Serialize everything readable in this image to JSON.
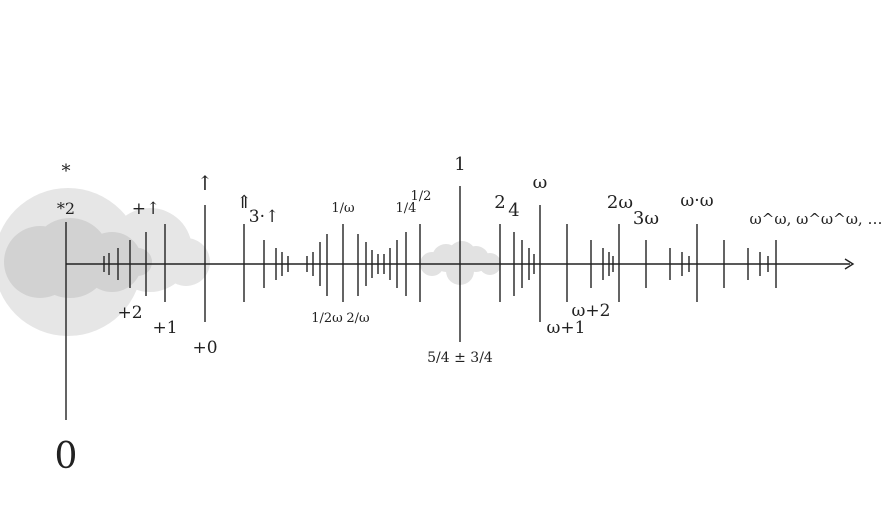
{
  "labels": {
    "zero": "0",
    "star": "*",
    "star2": "*2",
    "up": "↑",
    "dbl_up": "⇑",
    "three_up": "3·↑",
    "plus_up": "+↑",
    "plus2": "+2",
    "plus1": "+1",
    "plus0": "+0",
    "one_over_omega": "1/ω",
    "one_over_2omega": "1/2ω",
    "two_over_omega": "2/ω",
    "quarter": "1/4",
    "half": "1/2",
    "one": "1",
    "five_quarters_pm": "5/4 ± 3/4",
    "two": "2",
    "four": "4",
    "omega": "ω",
    "omega_plus_1": "ω+1",
    "omega_plus_2": "ω+2",
    "two_omega": "2ω",
    "three_omega": "3ω",
    "omega_dot_omega": "ω·ω",
    "omega_towers": "ω^ω, ω^ω^ω, …"
  }
}
